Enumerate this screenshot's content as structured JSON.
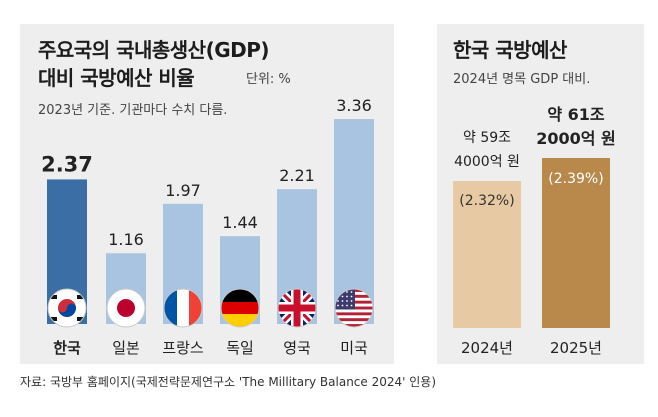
{
  "left": {
    "title_line1": "주요국의 국내총생산(GDP)",
    "title_line2": "대비 국방예산 비율",
    "unit": "단위: %",
    "note": "2023년 기준. 기관마다 수치 다름."
  },
  "right": {
    "title": "한국 국방예산",
    "subtitle": "2024년 명목 GDP 대비."
  },
  "source": "자료: 국방부 홈페이지(국제전략문제연구소 'The Millitary Balance 2024' 인용)",
  "colors": {
    "panel_bg": "#eeeeee",
    "bar_korea": "#3a6ea5",
    "bar_other": "#a9c4e0",
    "bar_2024": "#e7c9a4",
    "bar_2025": "#b8894a"
  },
  "chart_data": [
    {
      "type": "bar",
      "title": "주요국의 국내총생산(GDP) 대비 국방예산 비율",
      "unit": "%",
      "categories": [
        "한국",
        "일본",
        "프랑스",
        "독일",
        "영국",
        "미국"
      ],
      "values": [
        2.37,
        1.16,
        1.97,
        1.44,
        2.21,
        3.36
      ],
      "value_labels": [
        "2.37",
        "1.16",
        "1.97",
        "1.44",
        "2.21",
        "3.36"
      ],
      "flags": [
        "korea-flag-icon",
        "japan-flag-icon",
        "france-flag-icon",
        "germany-flag-icon",
        "uk-flag-icon",
        "usa-flag-icon"
      ],
      "highlight": "한국"
    },
    {
      "type": "bar",
      "title": "한국 국방예산",
      "categories": [
        "2024년",
        "2025년"
      ],
      "values": [
        2.32,
        2.39
      ],
      "value_labels": [
        [
          "약 59조",
          "4000억 원"
        ],
        [
          "약 61조",
          "2000억 원"
        ]
      ],
      "pct_labels": [
        "(2.32%)",
        "(2.39%)"
      ]
    }
  ]
}
